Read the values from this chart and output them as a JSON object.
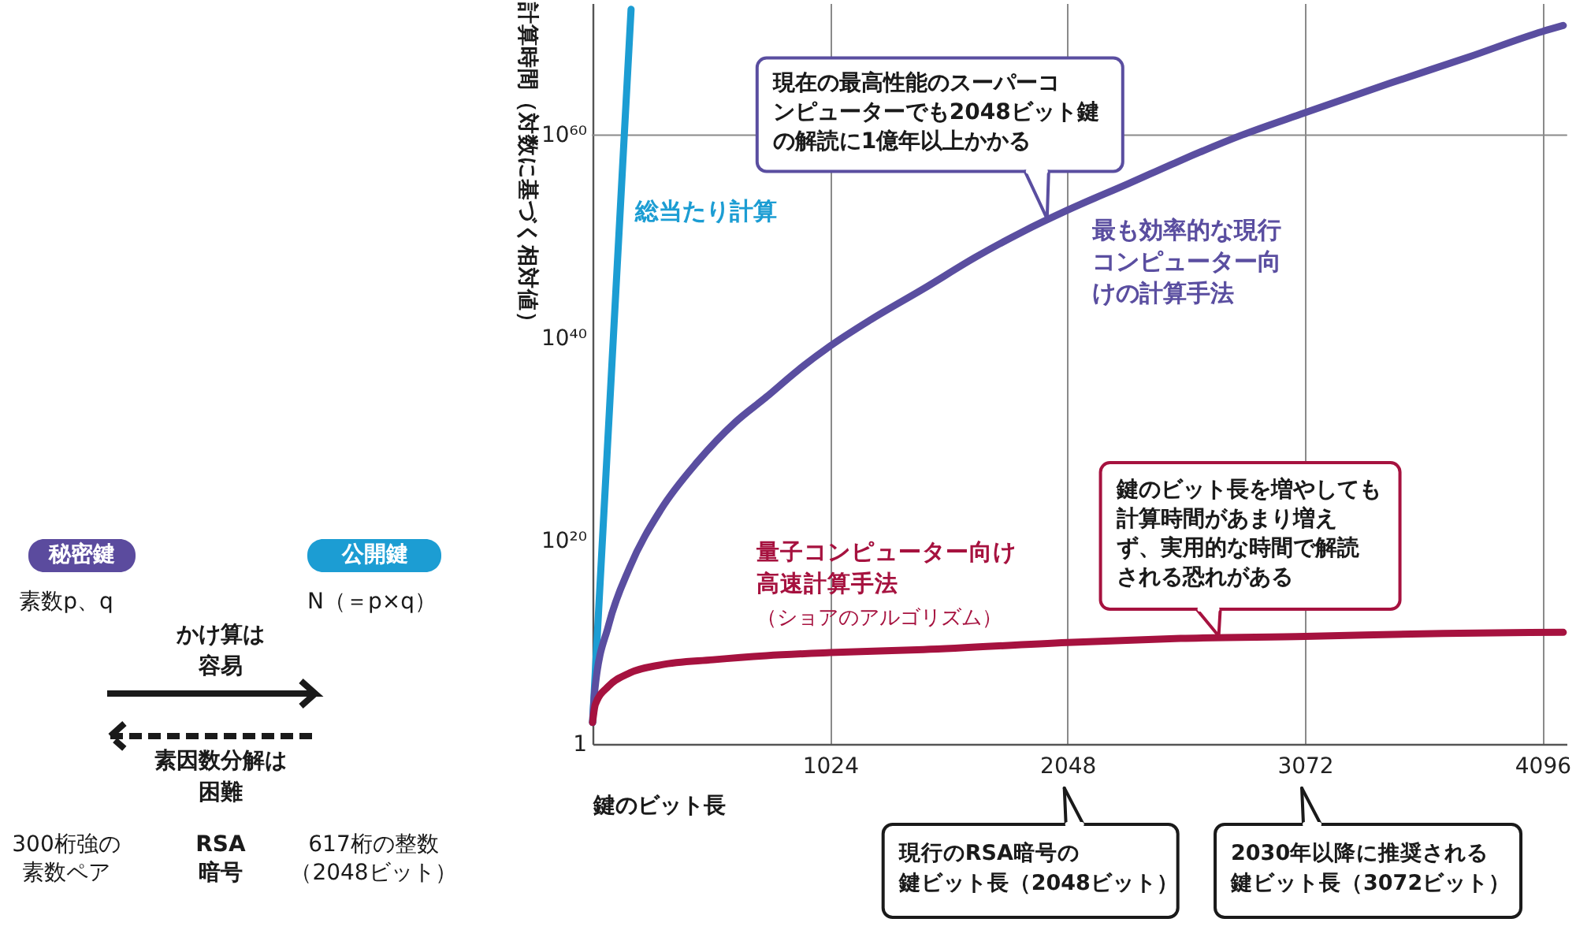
{
  "chart_data": [
    {
      "type": "other",
      "annotations": [
        "秘密鍵",
        "素数p、q",
        "公開鍵",
        "N（＝p×q）",
        "かけ算は容易",
        "素因数分解は困難",
        "300桁強の素数ペア",
        "RSA暗号",
        "617桁の整数（2048ビット）"
      ]
    },
    {
      "type": "line",
      "xlabel": "鍵のビット長",
      "ylabel": "計算時間（対数に基づく相対値）",
      "log": "y",
      "xlim": [
        0,
        4200
      ],
      "xticks": [
        1024,
        2048,
        3072,
        4096
      ],
      "ylim": [
        1,
        1e+73
      ],
      "yticks": [
        1,
        {
          "value": 1e+20,
          "label": "10²⁰"
        },
        {
          "value": 1e+40,
          "label": "10⁴⁰"
        },
        {
          "value": 1e+60,
          "label": "10⁶⁰"
        }
      ],
      "grid": "x",
      "ref_lines": [
        {
          "axis": "y",
          "value": 1e+60,
          "color": "#8a8a8a"
        }
      ],
      "series": [
        {
          "name": "総当たり計算",
          "color": "#1c9dd3",
          "x": [
            0,
            166
          ],
          "values": [
            130.0,
            2.5e+72
          ]
        },
        {
          "name": "最も効率的な現行コンピューター向けの計算手法",
          "color": "#5a4ea0",
          "x": [
            0,
            10,
            69,
            160,
            295,
            452,
            615,
            750,
            884,
            1024,
            1199,
            1430,
            1654,
            1857,
            2048,
            2310,
            2536,
            2800,
            3072,
            3439,
            3779,
            4096,
            4186
          ],
          "values": [
            130.0,
            250000.0,
            500000000000.0,
            2.5e+17,
            1.3e+23,
            6.3e+27,
            5e+31,
            1.6e+34,
            6.3e+36,
            1.6e+39,
            6.3e+41,
            7.9e+44,
            1e+48,
            3.2e+50,
            4e+52,
            1.6e+55,
            3.2e+57,
            1e+60,
            1.6e+62,
            1.3e+65,
            5e+67,
            1.6e+70,
            6.3e+70
          ]
        },
        {
          "name": "量子コンピューター向け高速計算手法",
          "color": "#a6123f",
          "x": [
            0,
            12,
            69,
            160,
            295,
            519,
            748,
            1024,
            1427,
            2048,
            2536,
            3072,
            3668,
            4186
          ],
          "values": [
            130.0,
            7900.0,
            500000.0,
            10000000.0,
            63000000.0,
            200000000.0,
            500000000.0,
            1000000000.0,
            2000000000.0,
            10000000000.0,
            25000000000.0,
            40000000000.0,
            79000000000.0,
            100000000000.0
          ]
        }
      ],
      "annotations": [
        {
          "text": "現在の最高性能のスーパーコンピューターでも2048ビット鍵の解読に1億年以上かかる",
          "x": 1960,
          "y": 4e+51
        },
        {
          "text": "鍵のビット長を増やしても計算時間があまり増えず、実用的な時間で解読される恐れがある",
          "x": 2700,
          "y": 30000000000.0
        },
        "（ショアのアルゴリズム）",
        "現行のRSA暗号の鍵ビット長（2048ビット）",
        "2030年以降に推奨される鍵ビット長（3072ビット）"
      ]
    }
  ]
}
